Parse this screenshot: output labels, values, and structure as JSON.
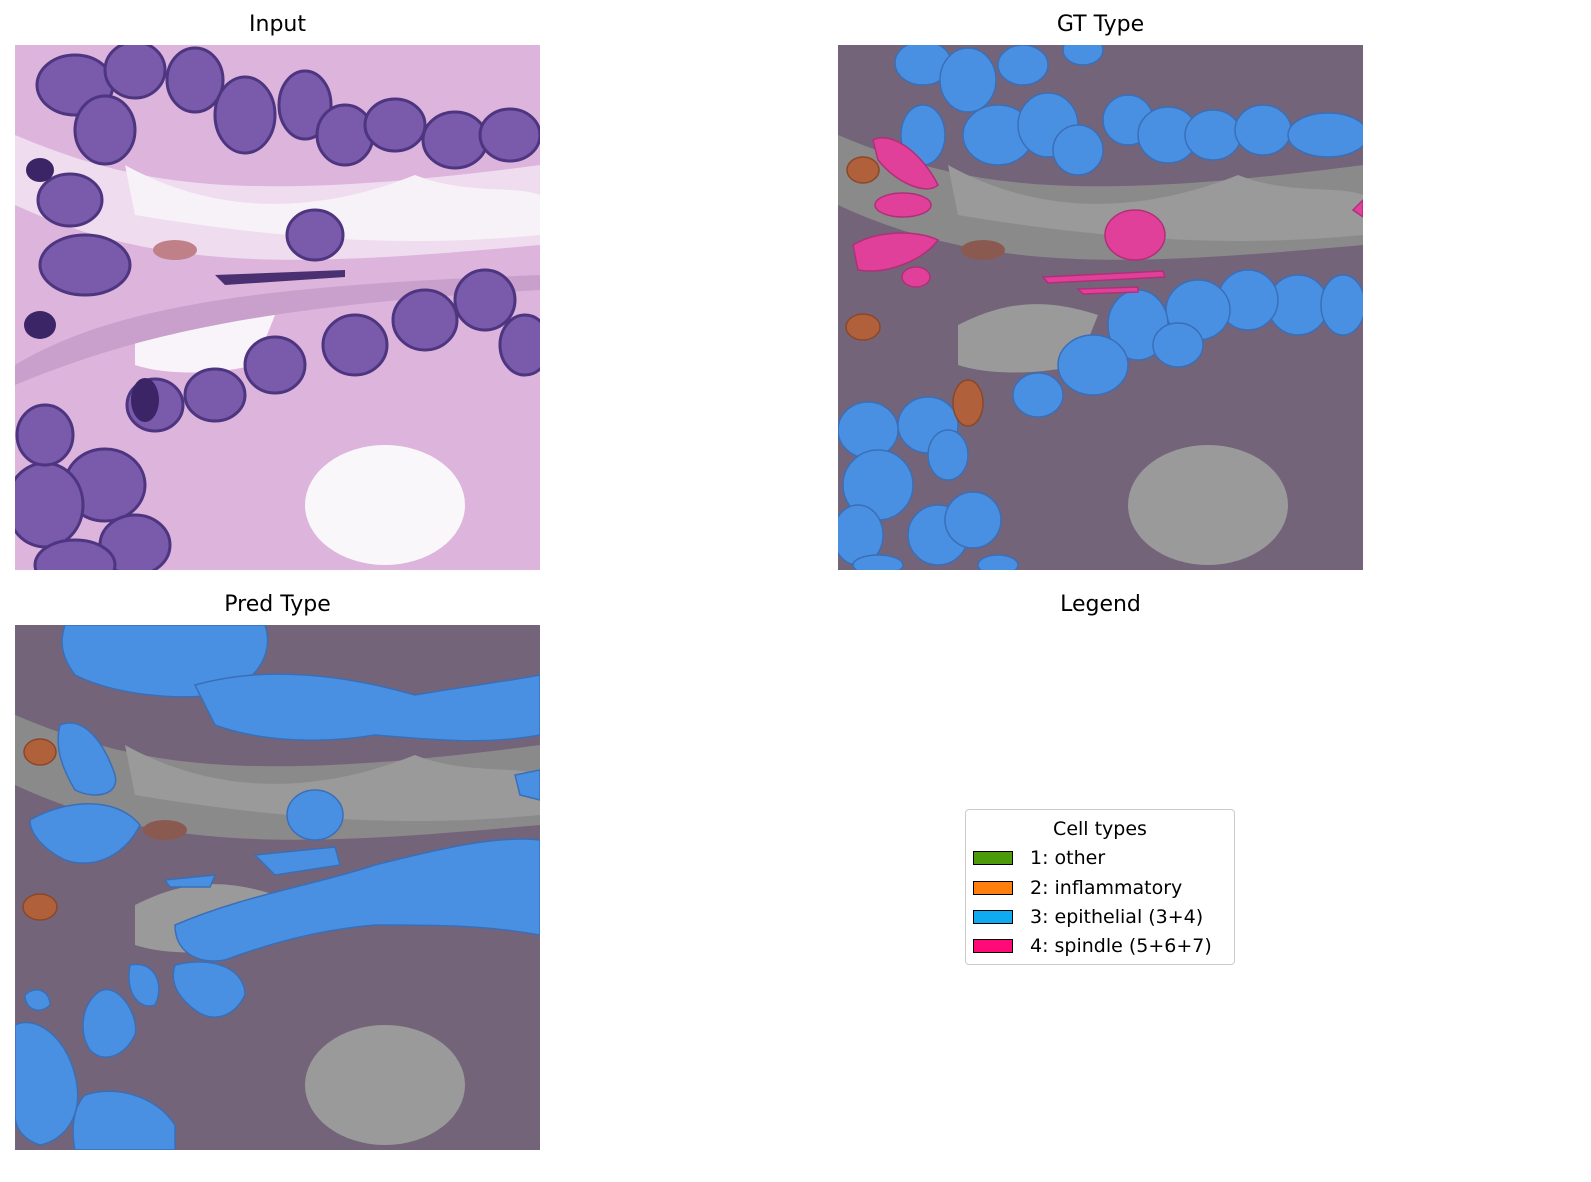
{
  "panels": {
    "input": {
      "title": "Input"
    },
    "gt": {
      "title": "GT Type"
    },
    "pred": {
      "title": "Pred Type"
    },
    "legend": {
      "title": "Legend"
    }
  },
  "legend": {
    "title": "Cell types",
    "items": [
      {
        "label": "1: other",
        "color": "#4c9a0a"
      },
      {
        "label": "2: inflammatory",
        "color": "#ff7f0e"
      },
      {
        "label": "3: epithelial (3+4)",
        "color": "#10aaf0"
      },
      {
        "label": "4: spindle (5+6+7)",
        "color": "#ff0a78"
      }
    ]
  },
  "colors": {
    "tissue_pink": "#e2bfe0",
    "tissue_light": "#f3e6f3",
    "nucleus_purple": "#7a55a8",
    "overlay_gray": "#7a6e80",
    "epithelial_overlay": "#4a90e2",
    "spindle_overlay": "#e0409a",
    "inflammatory_overlay": "#b0603a"
  }
}
